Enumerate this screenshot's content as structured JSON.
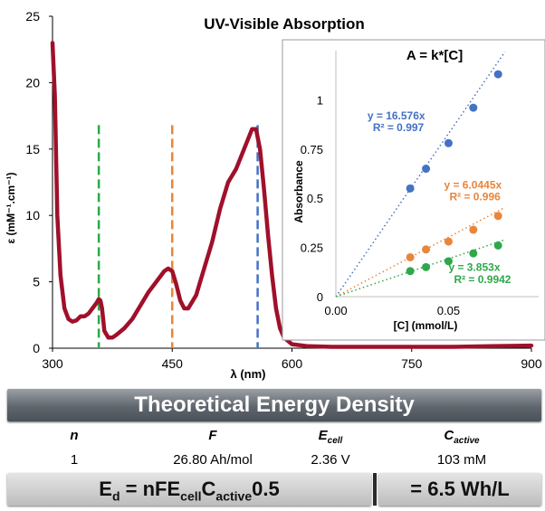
{
  "chart_data": [
    {
      "type": "line",
      "title": "UV-Visible Absorption",
      "xlabel": "λ (nm)",
      "ylabel": "ε (mM⁻¹.cm⁻¹)",
      "xlim": [
        300,
        900
      ],
      "ylim": [
        0,
        25
      ],
      "xticks": [
        "300",
        "450",
        "600",
        "750",
        "900"
      ],
      "yticks": [
        "0",
        "5",
        "10",
        "15",
        "20",
        "25"
      ],
      "series": [
        {
          "color": "#a0102a",
          "x": [
            300,
            303,
            306,
            310,
            315,
            320,
            325,
            330,
            335,
            340,
            345,
            350,
            355,
            358,
            360,
            362,
            365,
            370,
            375,
            380,
            390,
            400,
            410,
            420,
            430,
            440,
            445,
            450,
            455,
            460,
            465,
            470,
            480,
            490,
            500,
            510,
            520,
            530,
            540,
            550,
            555,
            560,
            565,
            570,
            575,
            580,
            585,
            590,
            600,
            620,
            650,
            700,
            750,
            800,
            850,
            900
          ],
          "y": [
            23.0,
            19.0,
            10.0,
            5.5,
            3.0,
            2.2,
            2.0,
            2.1,
            2.4,
            2.4,
            2.6,
            3.0,
            3.4,
            3.7,
            3.6,
            3.0,
            1.3,
            0.8,
            0.8,
            1.0,
            1.5,
            2.2,
            3.2,
            4.2,
            5.0,
            5.8,
            6.0,
            5.8,
            4.8,
            3.6,
            3.0,
            3.0,
            4.0,
            6.0,
            8.0,
            10.5,
            12.5,
            13.5,
            15.0,
            16.5,
            16.5,
            15.0,
            12.0,
            8.5,
            5.5,
            3.0,
            1.5,
            0.8,
            0.3,
            0.15,
            0.1,
            0.1,
            0.1,
            0.1,
            0.15,
            0.2
          ]
        }
      ],
      "vlines": [
        {
          "x": 358,
          "color": "#2ea84a"
        },
        {
          "x": 450,
          "color": "#e8863a"
        },
        {
          "x": 557,
          "color": "#4472c4"
        }
      ]
    },
    {
      "type": "scatter",
      "title": "A = k*[C]",
      "xlabel": "[C] (mmol/L)",
      "ylabel": "Absorbance",
      "xlim": [
        0,
        0.09
      ],
      "ylim": [
        0,
        1.25
      ],
      "xticks": [
        "0.00",
        "0.05"
      ],
      "yticks": [
        "0",
        "0.25",
        "0.5",
        "0.75",
        "1"
      ],
      "series": [
        {
          "color": "#4472c4",
          "slope": 16.576,
          "equation": "y = 16.576x",
          "r2": "R² = 0.997",
          "x": [
            0.033,
            0.04,
            0.05,
            0.061,
            0.072
          ],
          "y": [
            0.55,
            0.65,
            0.78,
            0.96,
            1.13
          ]
        },
        {
          "color": "#e8863a",
          "slope": 6.0445,
          "equation": "y = 6.0445x",
          "r2": "R² = 0.996",
          "x": [
            0.033,
            0.04,
            0.05,
            0.061,
            0.072
          ],
          "y": [
            0.2,
            0.24,
            0.28,
            0.34,
            0.41
          ]
        },
        {
          "color": "#2ea84a",
          "slope": 3.853,
          "equation": "y = 3.853x",
          "r2": "R² = 0.9942",
          "x": [
            0.033,
            0.04,
            0.05,
            0.061,
            0.072
          ],
          "y": [
            0.13,
            0.15,
            0.18,
            0.22,
            0.26
          ]
        }
      ]
    }
  ],
  "banner": {
    "title": "Theoretical Energy Density"
  },
  "table": {
    "headers": {
      "n": "n",
      "f": "F",
      "ecell": "E",
      "ecell_sub": "cell",
      "cactive": "C",
      "cactive_sub": "active"
    },
    "values": {
      "n": "1",
      "f": "26.80 Ah/mol",
      "ecell": "2.36 V",
      "cactive": "103 mM"
    }
  },
  "formula": {
    "lhs_e": "E",
    "lhs_e_sub": "d",
    "lhs_mid": " = nFE",
    "lhs_cell_sub": "cell",
    "lhs_c": "C",
    "lhs_active_sub": "active",
    "lhs_end": "0.5",
    "result": "= 6.5 Wh/L"
  }
}
